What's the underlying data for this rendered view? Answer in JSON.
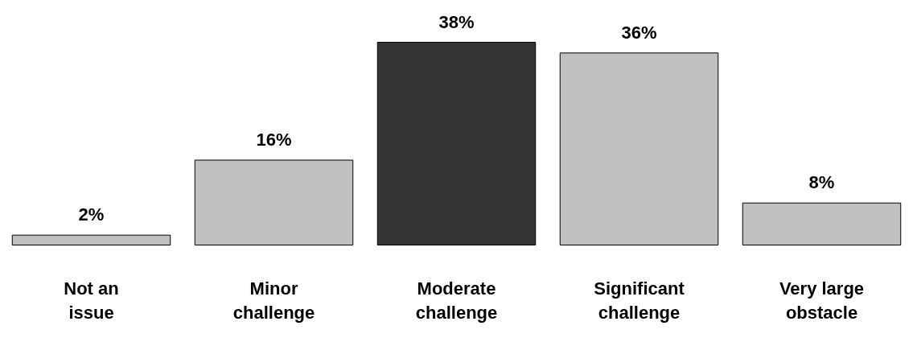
{
  "chart_data": {
    "type": "bar",
    "categories": [
      "Not an\nissue",
      "Minor\nchallenge",
      "Moderate\nchallenge",
      "Significant\nchallenge",
      "Very large\nobstacle"
    ],
    "values": [
      2,
      16,
      38,
      36,
      8
    ],
    "colors": [
      "#c0c0c0",
      "#c0c0c0",
      "#333333",
      "#c0c0c0",
      "#c0c0c0"
    ],
    "value_labels": [
      "2%",
      "16%",
      "38%",
      "36%",
      "8%"
    ]
  }
}
